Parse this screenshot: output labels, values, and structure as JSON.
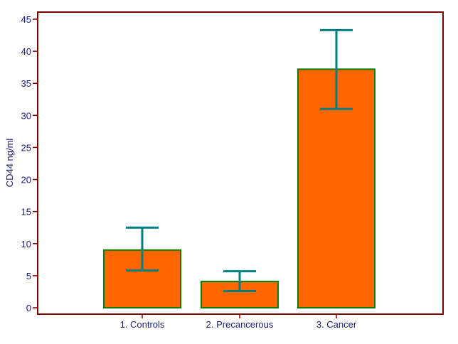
{
  "chart_data": {
    "type": "bar",
    "categories": [
      "1. Controls",
      "2. Precancerous",
      "3. Cancer"
    ],
    "values": [
      9.0,
      4.1,
      37.2
    ],
    "error_bars": [
      {
        "low": 5.8,
        "high": 12.5
      },
      {
        "low": 2.6,
        "high": 5.7
      },
      {
        "low": 31.0,
        "high": 43.3
      }
    ],
    "title": "",
    "xlabel": "",
    "ylabel": "CD44 ng/ml",
    "ylim": [
      0,
      45
    ],
    "yticks": [
      0,
      5,
      10,
      15,
      20,
      25,
      30,
      35,
      40,
      45
    ],
    "grid": false,
    "colors": {
      "bar_fill": "#ff6600",
      "bar_border": "#008000",
      "error_bar": "#007f7f",
      "axis": "#7f0000",
      "text": "#1a1a7a"
    }
  }
}
